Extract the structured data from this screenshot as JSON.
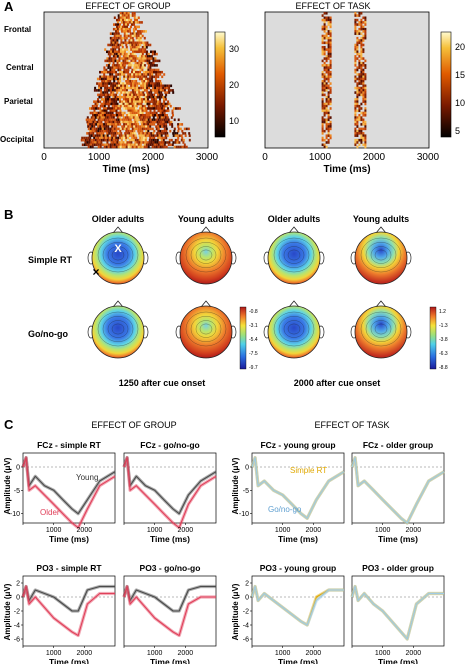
{
  "panels": {
    "a": {
      "letter": "A",
      "left_title": "EFFECT OF GROUP",
      "right_title": "EFFECT OF TASK",
      "regions": [
        "Frontal",
        "Central",
        "Parietal",
        "Occipital"
      ],
      "xticks": [
        "0",
        "1000",
        "2000",
        "3000"
      ],
      "xlabel": "Time (ms)",
      "left_colorbar_ticks": [
        "30",
        "20",
        "10"
      ],
      "right_colorbar_ticks": [
        "20",
        "15",
        "10",
        "5"
      ]
    },
    "b": {
      "letter": "B",
      "columns": [
        "Older adults",
        "Young adults",
        "Older adults",
        "Young adults"
      ],
      "rows": [
        "Simple RT",
        "Go/no-go"
      ],
      "markers": {
        "x_white": "X",
        "x_black": "×"
      },
      "colorbar_left_ticks": [
        "-0.8",
        "-3.1",
        "-5.4",
        "-7.5",
        "-9.7"
      ],
      "colorbar_right_ticks": [
        "1.2",
        "-1.3",
        "-3.8",
        "-6.3",
        "-8.8"
      ],
      "captions": [
        "1250 after cue onset",
        "2000 after cue onset"
      ]
    },
    "c": {
      "letter": "C",
      "group_title": "EFFECT OF GROUP",
      "task_title": "EFFECT OF TASK",
      "plot_titles_row1": [
        "FCz - simple RT",
        "FCz - go/no-go",
        "FCz - young group",
        "FCz - older group"
      ],
      "plot_titles_row2": [
        "PO3 - simple RT",
        "PO3 - go/no-go",
        "PO3 - young group",
        "PO3 - older group"
      ],
      "ylabel": "Amplitude (μV)",
      "xlabel": "Time (ms)",
      "xticks": [
        "0",
        "1000",
        "2000"
      ],
      "row1_yticks": [
        "0",
        "-5",
        "-10"
      ],
      "row2_yticks": [
        "2",
        "0",
        "-2",
        "-4",
        "-6"
      ],
      "legend_group": {
        "young": "Young",
        "older": "Older"
      },
      "legend_task": {
        "simple": "Simple RT",
        "gonogo": "Go/no-go"
      },
      "colors": {
        "young": "#4a4a4a",
        "older": "#e0405a",
        "simple": "#e0a800",
        "gonogo": "#9fcbe4"
      }
    }
  },
  "chart_data": [
    {
      "type": "line",
      "title": "FCz - simple RT",
      "xlabel": "Time (ms)",
      "ylabel": "Amplitude (μV)",
      "xlim": [
        0,
        3000
      ],
      "ylim": [
        -12,
        3
      ],
      "x": [
        0,
        100,
        200,
        400,
        700,
        1000,
        1300,
        1600,
        1800,
        2100,
        2500,
        3000
      ],
      "series": [
        {
          "name": "Young",
          "values": [
            0,
            2,
            -4,
            -2,
            -4,
            -5,
            -7,
            -9,
            -10,
            -7,
            -3,
            -1
          ]
        },
        {
          "name": "Older",
          "values": [
            0,
            2,
            -5,
            -4,
            -6,
            -8,
            -10,
            -12,
            -13,
            -9,
            -4,
            -2
          ]
        }
      ]
    },
    {
      "type": "line",
      "title": "FCz - go/no-go",
      "xlabel": "Time (ms)",
      "xlim": [
        0,
        3000
      ],
      "ylim": [
        -12,
        3
      ],
      "x": [
        0,
        100,
        200,
        400,
        700,
        1000,
        1300,
        1600,
        1800,
        2100,
        2500,
        3000
      ],
      "series": [
        {
          "name": "Young",
          "values": [
            0,
            2,
            -4,
            -2,
            -4,
            -5,
            -7,
            -9,
            -10,
            -6,
            -3,
            -1
          ]
        },
        {
          "name": "Older",
          "values": [
            0,
            2,
            -5,
            -4,
            -6,
            -8,
            -10,
            -12,
            -13,
            -8,
            -4,
            -2
          ]
        }
      ]
    },
    {
      "type": "line",
      "title": "FCz - young group",
      "xlabel": "Time (ms)",
      "xlim": [
        0,
        3000
      ],
      "ylim": [
        -12,
        3
      ],
      "x": [
        0,
        100,
        200,
        400,
        700,
        1000,
        1300,
        1600,
        1800,
        2100,
        2500,
        3000
      ],
      "series": [
        {
          "name": "Simple RT",
          "values": [
            0,
            2,
            -4,
            -3,
            -5,
            -6,
            -8,
            -10,
            -11,
            -7,
            -3,
            -1
          ]
        },
        {
          "name": "Go/no-go",
          "values": [
            0,
            2,
            -4,
            -3,
            -5,
            -6,
            -8,
            -10,
            -11,
            -7,
            -3,
            -1
          ]
        }
      ]
    },
    {
      "type": "line",
      "title": "FCz - older group",
      "xlabel": "Time (ms)",
      "xlim": [
        0,
        3000
      ],
      "ylim": [
        -12,
        3
      ],
      "x": [
        0,
        100,
        200,
        400,
        700,
        1000,
        1300,
        1600,
        1800,
        2100,
        2500,
        3000
      ],
      "series": [
        {
          "name": "Simple RT",
          "values": [
            0,
            2,
            -4,
            -3,
            -5,
            -7,
            -9,
            -11,
            -12,
            -8,
            -3,
            -1
          ]
        },
        {
          "name": "Go/no-go",
          "values": [
            0,
            2,
            -4,
            -3,
            -5,
            -7,
            -9,
            -11,
            -12,
            -8,
            -3,
            -1
          ]
        }
      ]
    },
    {
      "type": "line",
      "title": "PO3 - simple RT",
      "xlabel": "Time (ms)",
      "ylabel": "Amplitude (μV)",
      "xlim": [
        0,
        3000
      ],
      "ylim": [
        -7,
        3
      ],
      "x": [
        0,
        100,
        200,
        400,
        700,
        1000,
        1300,
        1600,
        1800,
        2100,
        2500,
        3000
      ],
      "series": [
        {
          "name": "Young",
          "values": [
            0,
            1.5,
            -0.5,
            1,
            0.5,
            0,
            -1,
            -2,
            -2,
            1,
            1.5,
            1.5
          ]
        },
        {
          "name": "Older",
          "values": [
            0,
            1.5,
            -1,
            0,
            -1.5,
            -3,
            -4,
            -5,
            -5.5,
            -1,
            0.5,
            0.5
          ]
        }
      ]
    },
    {
      "type": "line",
      "title": "PO3 - go/no-go",
      "xlabel": "Time (ms)",
      "xlim": [
        0,
        3000
      ],
      "ylim": [
        -7,
        3
      ],
      "x": [
        0,
        100,
        200,
        400,
        700,
        1000,
        1300,
        1600,
        1800,
        2100,
        2500,
        3000
      ],
      "series": [
        {
          "name": "Young",
          "values": [
            0,
            1.5,
            -0.5,
            1,
            0.5,
            0,
            -1,
            -2,
            -2,
            1,
            1.5,
            1.5
          ]
        },
        {
          "name": "Older",
          "values": [
            0,
            1.5,
            -1,
            0,
            -1.5,
            -3,
            -4,
            -5,
            -5.5,
            -1,
            0,
            0
          ]
        }
      ]
    },
    {
      "type": "line",
      "title": "PO3 - young group",
      "xlabel": "Time (ms)",
      "xlim": [
        0,
        3000
      ],
      "ylim": [
        -7,
        3
      ],
      "x": [
        0,
        100,
        200,
        400,
        700,
        1000,
        1300,
        1600,
        1800,
        2100,
        2500,
        3000
      ],
      "series": [
        {
          "name": "Simple RT",
          "values": [
            0,
            1.5,
            -0.5,
            0.5,
            -0.5,
            -1.5,
            -2.5,
            -3.5,
            -4,
            0,
            1,
            1
          ]
        },
        {
          "name": "Go/no-go",
          "values": [
            0,
            1.5,
            -0.5,
            0.5,
            -0.5,
            -1.5,
            -2.5,
            -3.5,
            -4,
            -0.5,
            1,
            1
          ]
        }
      ]
    },
    {
      "type": "line",
      "title": "PO3 - older group",
      "xlabel": "Time (ms)",
      "xlim": [
        0,
        3000
      ],
      "ylim": [
        -7,
        3
      ],
      "x": [
        0,
        100,
        200,
        400,
        700,
        1000,
        1300,
        1600,
        1800,
        2100,
        2500,
        3000
      ],
      "series": [
        {
          "name": "Simple RT",
          "values": [
            0,
            1.5,
            -0.5,
            0.5,
            -1,
            -2,
            -3.5,
            -5,
            -6,
            -1,
            0.5,
            0.5
          ]
        },
        {
          "name": "Go/no-go",
          "values": [
            0,
            1.5,
            -0.5,
            0.5,
            -1,
            -2,
            -3.5,
            -5,
            -6,
            -1,
            0.5,
            0.5
          ]
        }
      ]
    }
  ]
}
